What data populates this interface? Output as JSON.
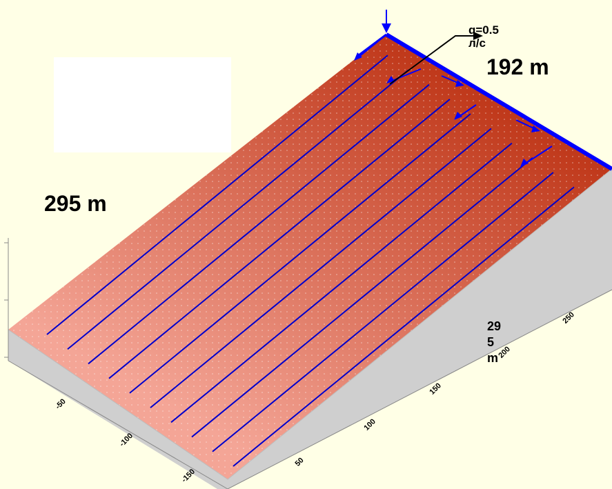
{
  "flow_rate": {
    "line1": "q=0.5",
    "line2": "л/с"
  },
  "top_edge_length": "192 m",
  "slope_length_left": "295 m",
  "slope_length_right": {
    "l1": "29",
    "l2": "5",
    "l3": "m"
  },
  "right_axis_ticks": [
    "50",
    "100",
    "150",
    "200",
    "250"
  ],
  "left_axis_ticks": [
    "-50",
    "-100",
    "-150"
  ],
  "colors": {
    "background": "#FFFFE6",
    "surface_top": "#C0391B",
    "surface_bottom": "#F4A596",
    "side_face": "#CFCFCF",
    "laterals": "#0000CC",
    "supply_pipe": "#0000FF"
  },
  "laterals": {
    "count": 10
  }
}
